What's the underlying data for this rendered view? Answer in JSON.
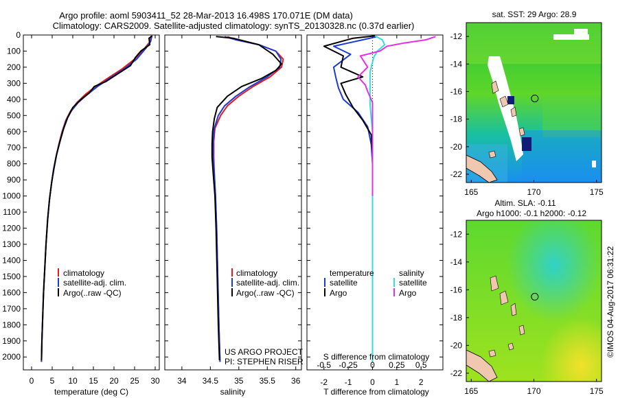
{
  "header": {
    "line1": "Argo profile: aoml 5903411_52 28-Mar-2013 16.498S 170.071E (DM data)",
    "line2": "Climatology: CARS2009. Satellite-adjusted climatology: synTS_20130328.nc (0.37d earlier)"
  },
  "side_label": "©IMOS 04-Aug-2017 06:31:22",
  "project": {
    "line1": "US ARGO PROJECT",
    "line2": "PI: STEPHEN RISER"
  },
  "colors": {
    "climatology": "#e41a1c",
    "satellite": "#1a3ad6",
    "argo": "#000000",
    "salinity_sat": "#2ee0e0",
    "salinity_argo": "#e62ee6"
  },
  "chart_data": [
    {
      "type": "line",
      "title": "",
      "xlabel": "temperature (deg C)",
      "ylabel": "",
      "xlim": [
        -2,
        31
      ],
      "ylim": [
        2080,
        0
      ],
      "xticks": [
        "0",
        "5",
        "10",
        "15",
        "20",
        "25",
        "30"
      ],
      "xtick_values": [
        0,
        5,
        10,
        15,
        20,
        25,
        30
      ],
      "yticks": [
        "0",
        "100",
        "200",
        "300",
        "400",
        "500",
        "600",
        "700",
        "800",
        "900",
        "1000",
        "1100",
        "1200",
        "1300",
        "1400",
        "1500",
        "1600",
        "1700",
        "1800",
        "1900",
        "2000"
      ],
      "ytick_values": [
        0,
        100,
        200,
        300,
        400,
        500,
        600,
        700,
        800,
        900,
        1000,
        1100,
        1200,
        1300,
        1400,
        1500,
        1600,
        1700,
        1800,
        1900,
        2000
      ],
      "legend": [
        "climatology",
        "satellite-adj. clim.",
        "Argo(..raw -QC)"
      ],
      "legend_position": "bottom-center",
      "series": [
        {
          "name": "climatology",
          "color": "#e41a1c",
          "points": [
            [
              29,
              5
            ],
            [
              28.8,
              40
            ],
            [
              27.5,
              80
            ],
            [
              25,
              150
            ],
            [
              22,
              210
            ],
            [
              19,
              260
            ],
            [
              15.5,
              320
            ],
            [
              13,
              370
            ],
            [
              11,
              420
            ],
            [
              9.5,
              470
            ],
            [
              8.3,
              530
            ],
            [
              7.4,
              600
            ],
            [
              6.6,
              680
            ],
            [
              5.9,
              760
            ],
            [
              5.3,
              840
            ],
            [
              4.8,
              930
            ],
            [
              4.3,
              1030
            ],
            [
              3.9,
              1150
            ],
            [
              3.5,
              1300
            ],
            [
              3.2,
              1450
            ],
            [
              2.9,
              1600
            ],
            [
              2.7,
              1750
            ],
            [
              2.5,
              1900
            ],
            [
              2.4,
              2030
            ]
          ]
        },
        {
          "name": "satellite-adj. clim.",
          "color": "#1a3ad6",
          "points": [
            [
              29.2,
              5
            ],
            [
              28.9,
              40
            ],
            [
              27.8,
              80
            ],
            [
              25.5,
              150
            ],
            [
              22.5,
              210
            ],
            [
              19.5,
              260
            ],
            [
              16,
              320
            ],
            [
              13.5,
              370
            ],
            [
              11.3,
              420
            ],
            [
              9.7,
              470
            ],
            [
              8.4,
              530
            ],
            [
              7.5,
              600
            ],
            [
              6.7,
              680
            ],
            [
              5.9,
              760
            ],
            [
              5.3,
              840
            ],
            [
              4.8,
              930
            ],
            [
              4.3,
              1030
            ],
            [
              3.9,
              1150
            ],
            [
              3.5,
              1300
            ],
            [
              3.2,
              1450
            ],
            [
              2.9,
              1600
            ],
            [
              2.7,
              1750
            ],
            [
              2.5,
              1900
            ],
            [
              2.4,
              2030
            ]
          ]
        },
        {
          "name": "Argo(..raw -QC)",
          "color": "#000000",
          "points": [
            [
              29.3,
              5
            ],
            [
              28.5,
              20
            ],
            [
              28.7,
              60
            ],
            [
              26.5,
              100
            ],
            [
              25.2,
              140
            ],
            [
              24,
              190
            ],
            [
              21,
              240
            ],
            [
              18,
              290
            ],
            [
              15.2,
              320
            ],
            [
              14,
              360
            ],
            [
              12,
              400
            ],
            [
              10,
              450
            ],
            [
              8.8,
              510
            ],
            [
              7.8,
              580
            ],
            [
              6.9,
              660
            ],
            [
              6.1,
              740
            ],
            [
              5.5,
              820
            ],
            [
              4.9,
              910
            ],
            [
              4.4,
              1010
            ],
            [
              3.9,
              1140
            ],
            [
              3.5,
              1300
            ],
            [
              3.2,
              1450
            ],
            [
              2.9,
              1600
            ],
            [
              2.7,
              1750
            ],
            [
              2.5,
              1900
            ],
            [
              2.4,
              2020
            ]
          ]
        }
      ]
    },
    {
      "type": "line",
      "title": "",
      "xlabel": "salinity",
      "ylabel": "",
      "xlim": [
        33.7,
        36.1
      ],
      "ylim": [
        2080,
        0
      ],
      "xticks": [
        "34",
        "34.5",
        "35",
        "35.5",
        "36"
      ],
      "xtick_values": [
        34,
        34.5,
        35,
        35.5,
        36
      ],
      "legend": [
        "climatology",
        "satellite-adj. clim.",
        "Argo(..raw -QC)"
      ],
      "legend_position": "bottom-center",
      "series": [
        {
          "name": "climatology",
          "color": "#e41a1c",
          "points": [
            [
              34.8,
              10
            ],
            [
              34.95,
              30
            ],
            [
              35.35,
              60
            ],
            [
              35.65,
              100
            ],
            [
              35.78,
              150
            ],
            [
              35.75,
              200
            ],
            [
              35.55,
              260
            ],
            [
              35.25,
              320
            ],
            [
              35.0,
              380
            ],
            [
              34.8,
              440
            ],
            [
              34.68,
              500
            ],
            [
              34.58,
              580
            ],
            [
              34.56,
              660
            ],
            [
              34.56,
              760
            ],
            [
              34.57,
              860
            ],
            [
              34.59,
              1000
            ],
            [
              34.61,
              1200
            ],
            [
              34.63,
              1500
            ],
            [
              34.65,
              1800
            ],
            [
              34.67,
              2030
            ]
          ]
        },
        {
          "name": "satellite-adj. clim.",
          "color": "#1a3ad6",
          "points": [
            [
              34.75,
              10
            ],
            [
              34.95,
              30
            ],
            [
              35.35,
              60
            ],
            [
              35.65,
              100
            ],
            [
              35.74,
              150
            ],
            [
              35.72,
              200
            ],
            [
              35.5,
              260
            ],
            [
              35.2,
              320
            ],
            [
              34.95,
              380
            ],
            [
              34.75,
              440
            ],
            [
              34.64,
              500
            ],
            [
              34.57,
              580
            ],
            [
              34.55,
              660
            ],
            [
              34.55,
              760
            ],
            [
              34.57,
              860
            ],
            [
              34.59,
              1000
            ],
            [
              34.61,
              1200
            ],
            [
              34.63,
              1500
            ],
            [
              34.65,
              1800
            ],
            [
              34.67,
              2030
            ]
          ]
        },
        {
          "name": "Argo(..raw -QC)",
          "color": "#000000",
          "points": [
            [
              34.6,
              10
            ],
            [
              34.9,
              20
            ],
            [
              35.35,
              60
            ],
            [
              35.6,
              120
            ],
            [
              35.7,
              160
            ],
            [
              35.75,
              180
            ],
            [
              35.65,
              220
            ],
            [
              35.4,
              270
            ],
            [
              35.05,
              320
            ],
            [
              34.8,
              380
            ],
            [
              34.62,
              450
            ],
            [
              34.57,
              520
            ],
            [
              34.54,
              600
            ],
            [
              34.53,
              680
            ],
            [
              34.53,
              760
            ],
            [
              34.55,
              860
            ],
            [
              34.58,
              1000
            ],
            [
              34.6,
              1200
            ],
            [
              34.62,
              1500
            ],
            [
              34.64,
              1800
            ],
            [
              34.66,
              2020
            ]
          ]
        }
      ]
    },
    {
      "type": "line",
      "title": "",
      "xlabel": "T difference from climatology",
      "xlabel_top": "S difference from climatology",
      "ylabel": "",
      "xlim": [
        -2.7,
        2.9
      ],
      "ylim": [
        2080,
        0
      ],
      "xticks": [
        "-2",
        "-1",
        "0",
        "1",
        "2"
      ],
      "xtick_values": [
        -2,
        -1,
        0,
        1,
        2
      ],
      "xticks_secondary": [
        "-0.5",
        "-0.25",
        "0",
        "0.25",
        "0.5"
      ],
      "xticks_secondary_values": [
        -0.5,
        -0.25,
        0,
        0.25,
        0.5
      ],
      "legend": [
        "temperature",
        "satellite",
        "Argo",
        "salinity",
        "satellite",
        "Argo"
      ],
      "legend_position": "bottom-center",
      "series": [
        {
          "name": "satellite",
          "group": "temperature",
          "color": "#1a3ad6",
          "points": [
            [
              0.2,
              10
            ],
            [
              -0.4,
              30
            ],
            [
              -1.6,
              70
            ],
            [
              -0.9,
              120
            ],
            [
              -1.6,
              200
            ],
            [
              -1.5,
              270
            ],
            [
              -1.4,
              330
            ],
            [
              -1.2,
              400
            ],
            [
              -0.6,
              480
            ],
            [
              -0.2,
              570
            ],
            [
              -0.05,
              680
            ],
            [
              0,
              800
            ],
            [
              0,
              1000
            ],
            [
              0,
              1300
            ],
            [
              0,
              1600
            ],
            [
              0,
              2030
            ]
          ]
        },
        {
          "name": "Argo",
          "group": "temperature",
          "color": "#000000",
          "points": [
            [
              0.1,
              5
            ],
            [
              -0.8,
              20
            ],
            [
              -2.0,
              70
            ],
            [
              -1.2,
              130
            ],
            [
              -1.3,
              200
            ],
            [
              -0.4,
              260
            ],
            [
              -1.3,
              300
            ],
            [
              -1.1,
              370
            ],
            [
              -0.8,
              450
            ],
            [
              -0.4,
              530
            ],
            [
              -0.05,
              620
            ],
            [
              0,
              750
            ],
            [
              0,
              1000
            ],
            [
              0,
              1300
            ],
            [
              0,
              1600
            ],
            [
              0,
              2020
            ]
          ]
        },
        {
          "name": "satellite",
          "group": "salinity",
          "color": "#2ee0e0",
          "points": [
            [
              0.1,
              5
            ],
            [
              0.4,
              30
            ],
            [
              0.5,
              60
            ],
            [
              0.2,
              100
            ],
            [
              0.05,
              140
            ],
            [
              -0.1,
              230
            ],
            [
              -0.1,
              320
            ],
            [
              -0.1,
              430
            ],
            [
              -0.05,
              520
            ],
            [
              0,
              600
            ],
            [
              0,
              800
            ],
            [
              0,
              1000
            ],
            [
              0,
              1300
            ],
            [
              0,
              1600
            ],
            [
              0,
              2030
            ]
          ]
        },
        {
          "name": "Argo",
          "group": "salinity",
          "color": "#e62ee6",
          "points": [
            [
              2.6,
              10
            ],
            [
              2.2,
              30
            ],
            [
              1.3,
              50
            ],
            [
              0.6,
              70
            ],
            [
              0.3,
              100
            ],
            [
              -0.5,
              130
            ],
            [
              -0.2,
              200
            ],
            [
              -0.6,
              260
            ],
            [
              -0.3,
              310
            ],
            [
              -0.2,
              350
            ],
            [
              0,
              420
            ],
            [
              0,
              700
            ],
            [
              0,
              1000
            ]
          ]
        }
      ]
    }
  ],
  "maps": [
    {
      "title_line1": "sat. SST: 29 Argo: 28.9",
      "title_line2": "",
      "xticks": [
        "165",
        "170",
        "175"
      ],
      "xtick_values": [
        165,
        170,
        175
      ],
      "yticks": [
        "-12",
        "-14",
        "-16",
        "-18",
        "-20",
        "-22"
      ],
      "ytick_values": [
        -12,
        -14,
        -16,
        -18,
        -20,
        -22
      ],
      "xlim": [
        164.6,
        175.4
      ],
      "ylim": [
        -22.6,
        -11.0
      ],
      "marker": [
        170.07,
        -16.5
      ]
    },
    {
      "title_line1": "Altim. SLA: -0.11",
      "title_line2": "Argo h1000: -0.1 h2000: -0.12",
      "xticks": [
        "165",
        "170",
        "175"
      ],
      "xtick_values": [
        165,
        170,
        175
      ],
      "yticks": [
        "-12",
        "-14",
        "-16",
        "-18",
        "-20",
        "-22"
      ],
      "ytick_values": [
        -12,
        -14,
        -16,
        -18,
        -20,
        -22
      ],
      "xlim": [
        164.6,
        175.4
      ],
      "ylim": [
        -22.6,
        -11.0
      ],
      "marker": [
        170.07,
        -16.5
      ]
    }
  ]
}
